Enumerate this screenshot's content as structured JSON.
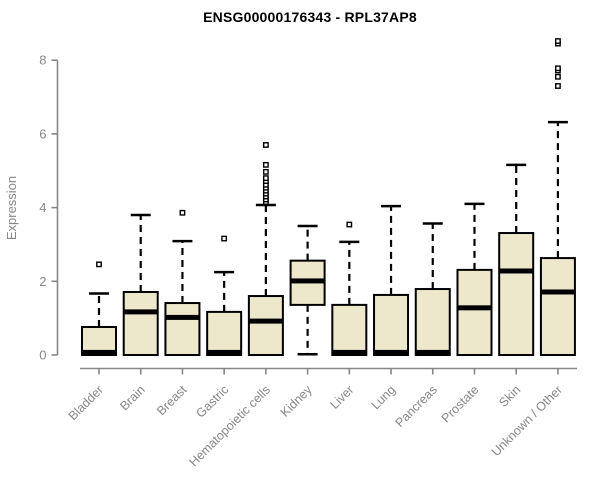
{
  "figure": {
    "title": "ENSG00000176343 - RPL37AP8"
  },
  "chart_data": {
    "type": "boxplot",
    "title": "ENSG00000176343 - RPL37AP8",
    "xlabel": "",
    "ylabel": "Expression",
    "ylim": [
      -0.35,
      8.6
    ],
    "yticks": [
      0,
      2,
      4,
      6,
      8
    ],
    "grid": false,
    "legend": "none",
    "categories": [
      "Bladder",
      "Brain",
      "Breast",
      "Gastric",
      "Hematopoietic cells",
      "Kidney",
      "Liver",
      "Lung",
      "Pancreas",
      "Prostate",
      "Skin",
      "Unknown / Other"
    ],
    "series": [
      {
        "name": "Bladder",
        "low": 0,
        "q1": 0,
        "median": 0.07,
        "q3": 0.76,
        "high": 1.67,
        "outliers": [
          2.46
        ]
      },
      {
        "name": "Brain",
        "low": 0,
        "q1": 0,
        "median": 1.17,
        "q3": 1.71,
        "high": 3.8,
        "outliers": []
      },
      {
        "name": "Breast",
        "low": 0,
        "q1": 0,
        "median": 1.02,
        "q3": 1.41,
        "high": 3.09,
        "outliers": [
          3.86
        ]
      },
      {
        "name": "Gastric",
        "low": 0,
        "q1": 0,
        "median": 0.07,
        "q3": 1.17,
        "high": 2.25,
        "outliers": [
          3.16
        ]
      },
      {
        "name": "Hematopoietic cells",
        "low": 0,
        "q1": 0,
        "median": 0.92,
        "q3": 1.6,
        "high": 4.07,
        "outliers": [
          4.15,
          4.22,
          4.3,
          4.38,
          4.46,
          4.54,
          4.62,
          4.72,
          4.8,
          4.97,
          5.16,
          5.7
        ]
      },
      {
        "name": "Kidney",
        "low": 0.02,
        "q1": 1.36,
        "median": 2.01,
        "q3": 2.56,
        "high": 3.5,
        "outliers": []
      },
      {
        "name": "Liver",
        "low": 0,
        "q1": 0,
        "median": 0.07,
        "q3": 1.36,
        "high": 3.07,
        "outliers": [
          3.54
        ]
      },
      {
        "name": "Lung",
        "low": 0,
        "q1": 0,
        "median": 0.07,
        "q3": 1.63,
        "high": 4.04,
        "outliers": []
      },
      {
        "name": "Pancreas",
        "low": 0,
        "q1": 0,
        "median": 0.07,
        "q3": 1.79,
        "high": 3.57,
        "outliers": []
      },
      {
        "name": "Prostate",
        "low": 0,
        "q1": 0,
        "median": 1.28,
        "q3": 2.31,
        "high": 4.1,
        "outliers": []
      },
      {
        "name": "Skin",
        "low": 0,
        "q1": 0,
        "median": 2.28,
        "q3": 3.31,
        "high": 5.16,
        "outliers": []
      },
      {
        "name": "Unknown / Other",
        "low": 0,
        "q1": 0,
        "median": 1.71,
        "q3": 2.63,
        "high": 6.32,
        "outliers": [
          7.3,
          7.55,
          7.72,
          7.78,
          8.45,
          8.52
        ]
      }
    ],
    "colors": {
      "box_fill": "#EDE8CC",
      "box_stroke": "#000000",
      "median": "#000000",
      "whisker": "#000000",
      "axis": "#878787",
      "title": "#000000",
      "background": "#ffffff"
    }
  }
}
